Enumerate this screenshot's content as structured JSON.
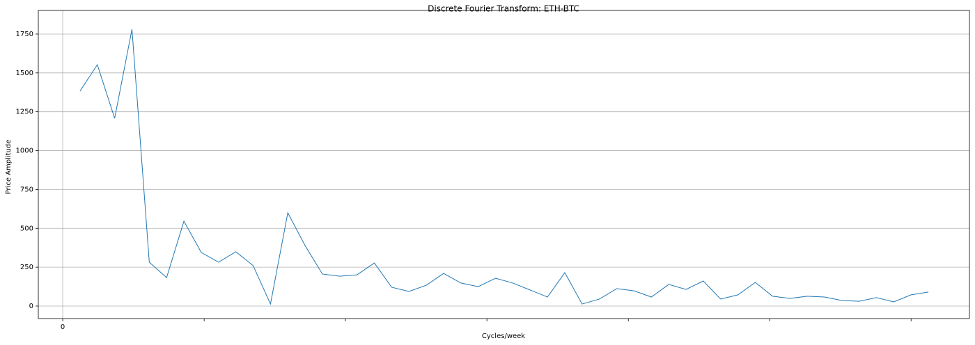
{
  "chart_data": {
    "type": "line",
    "title": "Discrete Fourier Transform: ETH-BTC",
    "xlabel": "Cycles/week",
    "ylabel": "Price Amplitude",
    "x": [
      1,
      2,
      3,
      4,
      5,
      6,
      7,
      8,
      9,
      10,
      11,
      12,
      13,
      14,
      15,
      16,
      17,
      18,
      19,
      20,
      21,
      22,
      23,
      24,
      25,
      26,
      27,
      28,
      29,
      30,
      31,
      32,
      33,
      34,
      35,
      36,
      37,
      38,
      39,
      40,
      41,
      42,
      43,
      44,
      45,
      46,
      47,
      48,
      49,
      50
    ],
    "series": [
      {
        "name": "ETH-BTC",
        "color": "#1f77b4",
        "values": [
          1383,
          1553,
          1208,
          1781,
          282,
          183,
          546,
          345,
          282,
          349,
          260,
          13,
          600,
          389,
          206,
          192,
          201,
          277,
          121,
          94,
          134,
          210,
          148,
          125,
          179,
          148,
          103,
          58,
          215,
          13,
          45,
          112,
          98,
          58,
          139,
          107,
          161,
          45,
          72,
          152,
          63,
          49,
          63,
          58,
          36,
          31,
          54,
          27,
          72,
          90
        ]
      }
    ],
    "xlim": [
      -1.41,
      52.37
    ],
    "xticks": [
      0
    ],
    "xticks_unlabeled": [
      8.17,
      16.33,
      24.5,
      32.67,
      40.83,
      49.0
    ],
    "ylim": [
      -80.6,
      1902
    ],
    "yticks": [
      0,
      250,
      500,
      750,
      1000,
      1250,
      1500,
      1750
    ],
    "grid": true
  }
}
